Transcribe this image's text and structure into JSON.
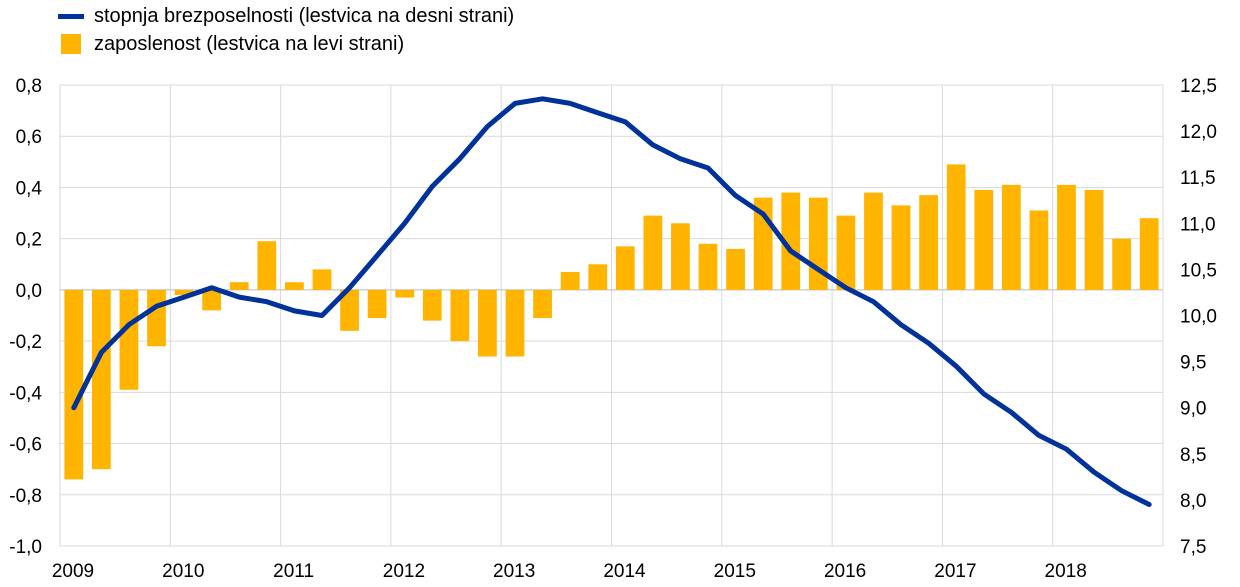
{
  "colors": {
    "line": "#003299",
    "bar": "#FFB400",
    "grid": "#d9d9d9"
  },
  "chart_data": {
    "type": "bar+line",
    "title": "",
    "left_axis": {
      "ylim": [
        -1.0,
        0.8
      ],
      "ticks": [
        "-1,0",
        "-0,8",
        "-0,6",
        "-0,4",
        "-0,2",
        "0,0",
        "0,2",
        "0,4",
        "0,6",
        "0,8"
      ]
    },
    "right_axis": {
      "ylim": [
        7.5,
        12.5
      ],
      "ticks": [
        "7,5",
        "8,0",
        "8,5",
        "9,0",
        "9,5",
        "10,0",
        "10,5",
        "11,0",
        "11,5",
        "12,0",
        "12,5"
      ]
    },
    "x_tick_labels": [
      "2009",
      "2010",
      "2011",
      "2012",
      "2013",
      "2014",
      "2015",
      "2016",
      "2017",
      "2018"
    ],
    "grid": true,
    "legend_position": "top-left",
    "quarters": [
      "2009Q1",
      "2009Q2",
      "2009Q3",
      "2009Q4",
      "2010Q1",
      "2010Q2",
      "2010Q3",
      "2010Q4",
      "2011Q1",
      "2011Q2",
      "2011Q3",
      "2011Q4",
      "2012Q1",
      "2012Q2",
      "2012Q3",
      "2012Q4",
      "2013Q1",
      "2013Q2",
      "2013Q3",
      "2013Q4",
      "2014Q1",
      "2014Q2",
      "2014Q3",
      "2014Q4",
      "2015Q1",
      "2015Q2",
      "2015Q3",
      "2015Q4",
      "2016Q1",
      "2016Q2",
      "2016Q3",
      "2016Q4",
      "2017Q1",
      "2017Q2",
      "2017Q3",
      "2017Q4",
      "2018Q1",
      "2018Q2",
      "2018Q3",
      "2018Q4"
    ],
    "series": [
      {
        "name": "stopnja brezposelnosti (lestvica na desni strani)",
        "type": "line",
        "axis": "right",
        "values": [
          9.0,
          9.6,
          9.9,
          10.1,
          10.2,
          10.3,
          10.2,
          10.15,
          10.05,
          10.0,
          10.3,
          10.65,
          11.0,
          11.4,
          11.7,
          12.05,
          12.3,
          12.35,
          12.3,
          12.2,
          12.1,
          11.85,
          11.7,
          11.6,
          11.3,
          11.1,
          10.7,
          10.5,
          10.3,
          10.15,
          9.9,
          9.7,
          9.45,
          9.15,
          8.95,
          8.7,
          8.55,
          8.3,
          8.1,
          7.95
        ]
      },
      {
        "name": "zaposlenost (lestvica na levi strani)",
        "type": "bar",
        "axis": "left",
        "values": [
          -0.74,
          -0.7,
          -0.39,
          -0.22,
          -0.02,
          -0.08,
          0.03,
          0.19,
          0.03,
          0.08,
          -0.16,
          -0.11,
          -0.03,
          -0.12,
          -0.2,
          -0.26,
          -0.26,
          -0.11,
          0.07,
          0.1,
          0.17,
          0.29,
          0.26,
          0.18,
          0.16,
          0.36,
          0.38,
          0.36,
          0.29,
          0.38,
          0.33,
          0.37,
          0.49,
          0.39,
          0.41,
          0.31,
          0.41,
          0.39,
          0.2,
          0.28
        ]
      }
    ]
  }
}
